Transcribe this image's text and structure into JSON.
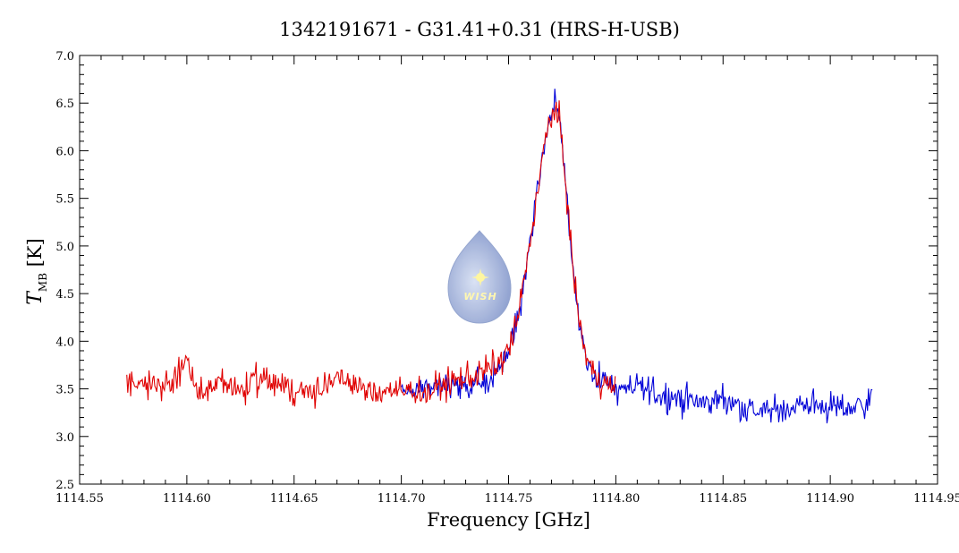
{
  "chart_data": {
    "type": "line",
    "title": "1342191671 - G31.41+0.31 (HRS-H-USB)",
    "xlabel": "Frequency [GHz]",
    "ylabel": {
      "symbol": "T",
      "subscript": "MB",
      "unit": "[K]"
    },
    "xlim": [
      1114.55,
      1114.95
    ],
    "ylim": [
      2.5,
      7.0
    ],
    "x_ticks": [
      "1114.55",
      "1114.60",
      "1114.65",
      "1114.70",
      "1114.75",
      "1114.80",
      "1114.85",
      "1114.90",
      "1114.95"
    ],
    "y_ticks": [
      "2.5",
      "3.0",
      "3.5",
      "4.0",
      "4.5",
      "5.0",
      "5.5",
      "6.0",
      "6.5",
      "7.0"
    ],
    "grid": false,
    "legend": "none",
    "series": [
      {
        "color": "#e00000",
        "x_range": [
          1114.572,
          1114.8
        ],
        "points": [
          [
            1114.572,
            3.55
          ],
          [
            1114.58,
            3.6
          ],
          [
            1114.588,
            3.5
          ],
          [
            1114.596,
            3.65
          ],
          [
            1114.6,
            3.8
          ],
          [
            1114.605,
            3.45
          ],
          [
            1114.615,
            3.55
          ],
          [
            1114.625,
            3.5
          ],
          [
            1114.635,
            3.6
          ],
          [
            1114.645,
            3.55
          ],
          [
            1114.655,
            3.45
          ],
          [
            1114.665,
            3.55
          ],
          [
            1114.675,
            3.6
          ],
          [
            1114.685,
            3.45
          ],
          [
            1114.695,
            3.5
          ],
          [
            1114.7,
            3.45
          ],
          [
            1114.705,
            3.5
          ],
          [
            1114.712,
            3.45
          ],
          [
            1114.72,
            3.55
          ],
          [
            1114.728,
            3.6
          ],
          [
            1114.735,
            3.65
          ],
          [
            1114.74,
            3.7
          ],
          [
            1114.745,
            3.75
          ],
          [
            1114.75,
            3.9
          ],
          [
            1114.754,
            4.2
          ],
          [
            1114.757,
            4.6
          ],
          [
            1114.76,
            5.05
          ],
          [
            1114.763,
            5.5
          ],
          [
            1114.766,
            5.95
          ],
          [
            1114.769,
            6.3
          ],
          [
            1114.7715,
            6.45
          ],
          [
            1114.774,
            6.25
          ],
          [
            1114.777,
            5.6
          ],
          [
            1114.78,
            4.75
          ],
          [
            1114.783,
            4.2
          ],
          [
            1114.786,
            3.85
          ],
          [
            1114.79,
            3.65
          ],
          [
            1114.795,
            3.55
          ],
          [
            1114.8,
            3.5
          ]
        ]
      },
      {
        "color": "#0000d8",
        "x_range": [
          1114.7,
          1114.92
        ],
        "points": [
          [
            1114.7,
            3.45
          ],
          [
            1114.71,
            3.5
          ],
          [
            1114.72,
            3.55
          ],
          [
            1114.73,
            3.5
          ],
          [
            1114.738,
            3.55
          ],
          [
            1114.745,
            3.7
          ],
          [
            1114.75,
            3.9
          ],
          [
            1114.754,
            4.2
          ],
          [
            1114.757,
            4.6
          ],
          [
            1114.76,
            5.05
          ],
          [
            1114.763,
            5.5
          ],
          [
            1114.766,
            5.95
          ],
          [
            1114.769,
            6.3
          ],
          [
            1114.7715,
            6.5
          ],
          [
            1114.774,
            6.3
          ],
          [
            1114.777,
            5.6
          ],
          [
            1114.78,
            4.75
          ],
          [
            1114.783,
            4.2
          ],
          [
            1114.786,
            3.85
          ],
          [
            1114.79,
            3.65
          ],
          [
            1114.8,
            3.5
          ],
          [
            1114.81,
            3.5
          ],
          [
            1114.82,
            3.45
          ],
          [
            1114.83,
            3.4
          ],
          [
            1114.84,
            3.35
          ],
          [
            1114.85,
            3.4
          ],
          [
            1114.86,
            3.3
          ],
          [
            1114.87,
            3.25
          ],
          [
            1114.88,
            3.3
          ],
          [
            1114.89,
            3.35
          ],
          [
            1114.9,
            3.3
          ],
          [
            1114.91,
            3.3
          ],
          [
            1114.92,
            3.4
          ]
        ]
      }
    ]
  },
  "logo": {
    "text": "WISH",
    "color_light": "#d7e0f3",
    "color_dark": "#7f93c9",
    "star_color": "#fff6a0"
  }
}
